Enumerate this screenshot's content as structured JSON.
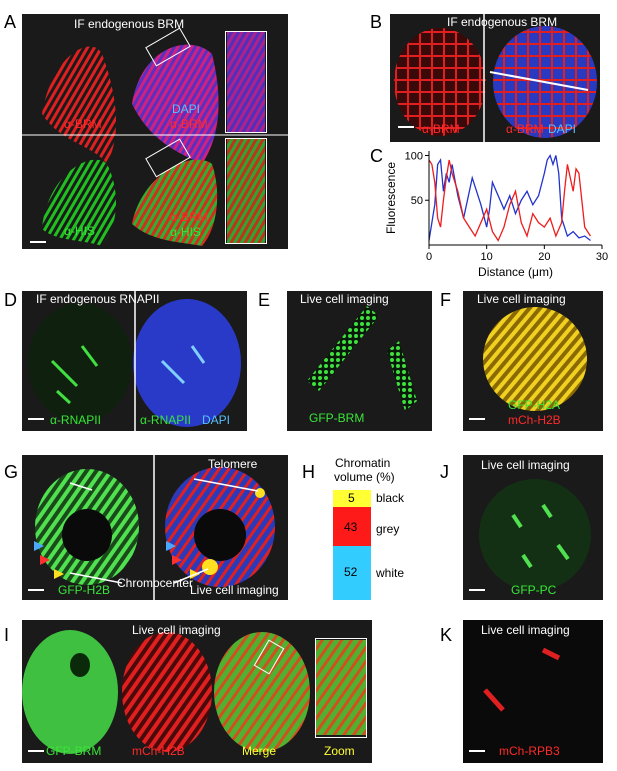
{
  "panels": {
    "A": {
      "letter": "A",
      "title": "IF endogenous BRM",
      "labels": [
        "α-BRM",
        "DAPI",
        "α-BRM",
        "α-HIS",
        "α-BRM",
        "α-HIS"
      ]
    },
    "B": {
      "letter": "B",
      "title": "IF endogenous BRM",
      "labels": [
        "α-BRM",
        "α-BRM",
        "DAPI"
      ]
    },
    "C": {
      "letter": "C"
    },
    "D": {
      "letter": "D",
      "title": "IF endogenous RNAPII",
      "labels": [
        "α-RNAPII",
        "α-RNAPII",
        "DAPI"
      ]
    },
    "E": {
      "letter": "E",
      "title": "Live cell imaging",
      "labels": [
        "GFP-BRM"
      ]
    },
    "F": {
      "letter": "F",
      "title": "Live cell imaging",
      "labels": [
        "GFP-H2A",
        "mCh-H2B"
      ]
    },
    "G": {
      "letter": "G",
      "labels": [
        "GFP-H2B",
        "Live cell imaging",
        "Telomere",
        "Chromocenter"
      ]
    },
    "H": {
      "letter": "H",
      "title_line1": "Chromatin",
      "title_line2": "volume (%)",
      "segments": [
        {
          "value": "5",
          "label": "black",
          "color": "#ffff33"
        },
        {
          "value": "43",
          "label": "grey",
          "color": "#ff1a1a"
        },
        {
          "value": "52",
          "label": "white",
          "color": "#33ccff"
        }
      ]
    },
    "I": {
      "letter": "I",
      "title": "Live cell imaging",
      "labels": [
        "GFP-BRM",
        "mCh-H2B",
        "Merge",
        "Zoom"
      ]
    },
    "J": {
      "letter": "J",
      "title": "Live cell imaging",
      "labels": [
        "GFP-PC"
      ]
    },
    "K": {
      "letter": "K",
      "title": "Live cell imaging",
      "labels": [
        "mCh-RPB3"
      ]
    }
  },
  "chart_data": {
    "type": "line",
    "title": "",
    "xlabel": "Distance (μm)",
    "ylabel": "Fluorescence",
    "xlim": [
      0,
      30
    ],
    "ylim": [
      0,
      105
    ],
    "xticks": [
      "0",
      "10",
      "20",
      "30"
    ],
    "yticks": [
      "50",
      "100"
    ],
    "series": [
      {
        "color": "#2233cc",
        "x": [
          0,
          1,
          1.5,
          2,
          2.5,
          3,
          3.5,
          4,
          5,
          6,
          7,
          7.5,
          8,
          9,
          10,
          10.5,
          11,
          12,
          13,
          14,
          15,
          16,
          17,
          18,
          19,
          20,
          20.5,
          21,
          21.5,
          22,
          22.5,
          23,
          24,
          25,
          26,
          27,
          28
        ],
        "y": [
          5,
          45,
          90,
          95,
          60,
          80,
          70,
          90,
          55,
          30,
          60,
          75,
          65,
          45,
          20,
          40,
          70,
          55,
          40,
          55,
          35,
          50,
          60,
          45,
          55,
          80,
          95,
          100,
          90,
          100,
          80,
          30,
          10,
          15,
          8,
          10,
          5
        ]
      },
      {
        "color": "#ee1c1c",
        "x": [
          0,
          0.5,
          1,
          1.5,
          2,
          2.5,
          3,
          3.5,
          4,
          5,
          6,
          7,
          8,
          9,
          10,
          11,
          12,
          13,
          14,
          15,
          16,
          17,
          18,
          19,
          20,
          21,
          22,
          23,
          23.5,
          24,
          24.5,
          25,
          25.5,
          26,
          26.5,
          27,
          28
        ],
        "y": [
          95,
          90,
          70,
          30,
          20,
          50,
          75,
          95,
          80,
          60,
          30,
          20,
          10,
          25,
          40,
          15,
          5,
          20,
          45,
          60,
          25,
          10,
          35,
          25,
          20,
          30,
          10,
          25,
          60,
          90,
          75,
          60,
          85,
          80,
          50,
          20,
          10
        ]
      }
    ]
  }
}
